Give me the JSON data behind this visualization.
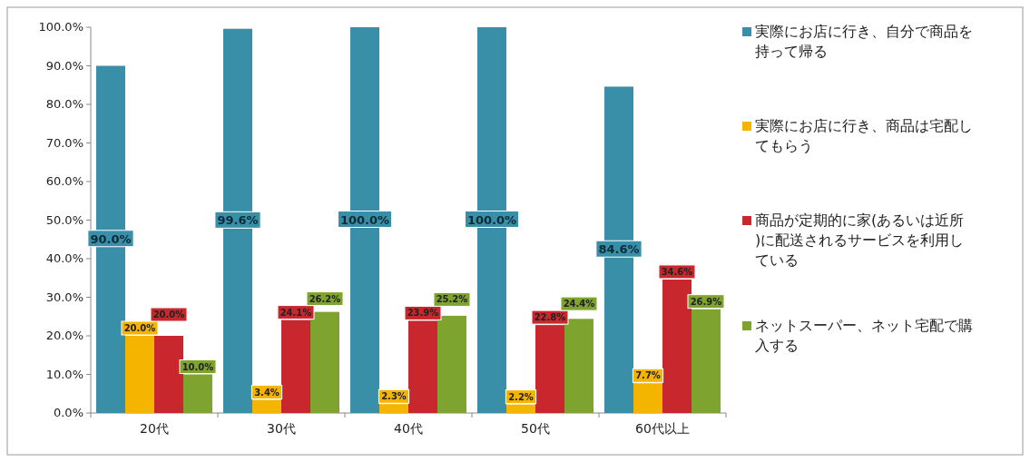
{
  "chart_data": {
    "type": "bar",
    "categories": [
      "20代",
      "30代",
      "40代",
      "50代",
      "60代以上"
    ],
    "series": [
      {
        "name": "実際にお店に行き、自分で商品を持って帰る",
        "color": "#3a8fa8",
        "values": [
          90.0,
          99.6,
          100.0,
          100.0,
          84.6
        ]
      },
      {
        "name": "実際にお店に行き、商品は宅配してもらう",
        "color": "#f5b400",
        "values": [
          20.0,
          3.4,
          2.3,
          2.2,
          7.7
        ]
      },
      {
        "name": "商品が定期的に家(あるいは近所)に配送されるサービスを利用している",
        "color": "#c8272d",
        "values": [
          20.0,
          24.1,
          23.9,
          22.8,
          34.6
        ]
      },
      {
        "name": "ネットスーパー、ネット宅配で購入する",
        "color": "#7ea32e",
        "values": [
          10.0,
          26.2,
          25.2,
          24.4,
          26.9
        ]
      }
    ],
    "ylim": [
      0,
      100
    ],
    "yticks": [
      {
        "value": 0,
        "label": "0.0%"
      },
      {
        "value": 10,
        "label": "10.0%"
      },
      {
        "value": 20,
        "label": "20.0%"
      },
      {
        "value": 30,
        "label": "30.0%"
      },
      {
        "value": 40,
        "label": "40.0%"
      },
      {
        "value": 50,
        "label": "50.0%"
      },
      {
        "value": 60,
        "label": "60.0%"
      },
      {
        "value": 70,
        "label": "70.0%"
      },
      {
        "value": 80,
        "label": "80.0%"
      },
      {
        "value": 90,
        "label": "90.0%"
      },
      {
        "value": 100,
        "label": "100.0%"
      }
    ],
    "value_labels": [
      [
        "90.0%",
        "99.6%",
        "100.0%",
        "100.0%",
        "84.6%"
      ],
      [
        "20.0%",
        "3.4%",
        "2.3%",
        "2.2%",
        "7.7%"
      ],
      [
        "20.0%",
        "24.1%",
        "23.9%",
        "22.8%",
        "34.6%"
      ],
      [
        "10.0%",
        "26.2%",
        "25.2%",
        "24.4%",
        "26.9%"
      ]
    ],
    "legend": "right",
    "grid": false
  }
}
